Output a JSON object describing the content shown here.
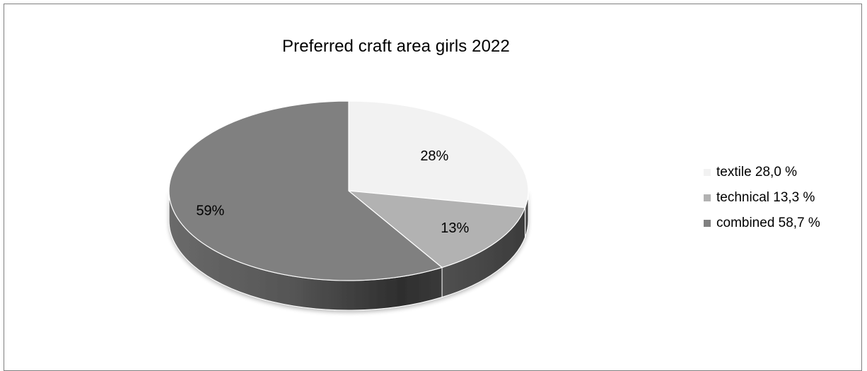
{
  "chart_data": {
    "type": "pie",
    "title": "Preferred craft area girls 2022",
    "categories": [
      "textile",
      "technical",
      "combined"
    ],
    "values": [
      28.0,
      13.3,
      58.7
    ],
    "data_labels": [
      "28%",
      "13%",
      "59%"
    ],
    "legend": {
      "position": "right",
      "entries": [
        "textile 28,0 %",
        "technical 13,3 %",
        "combined 58,7 %"
      ]
    },
    "colors": [
      "#f2f2f2",
      "#b2b2b2",
      "#808080"
    ],
    "style": "3d"
  }
}
